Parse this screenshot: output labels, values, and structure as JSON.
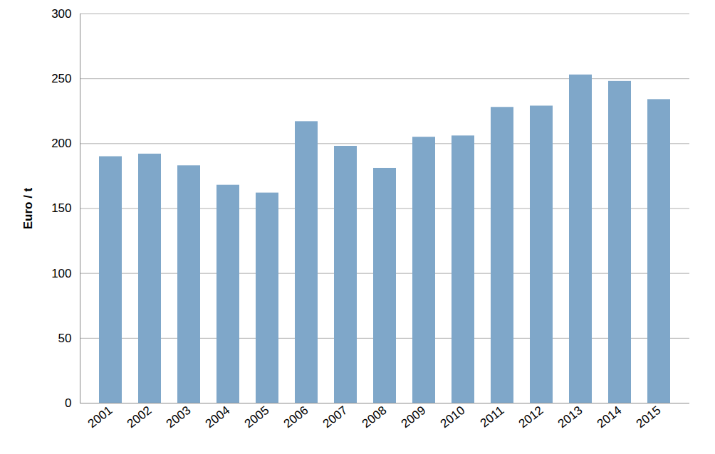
{
  "chart_data": {
    "type": "bar",
    "y_label": "Euro / t",
    "categories": [
      "2001",
      "2002",
      "2003",
      "2004",
      "2005",
      "2006",
      "2007",
      "2008",
      "2009",
      "2010",
      "2011",
      "2012",
      "2013",
      "2014",
      "2015"
    ],
    "values": [
      190,
      192,
      183,
      168,
      162,
      217,
      198,
      181,
      205,
      206,
      228,
      229,
      253,
      248,
      234
    ],
    "color": "#7fa7c9",
    "ylim": [
      0,
      300
    ],
    "yticks": [
      0,
      50,
      100,
      150,
      200,
      250,
      300
    ],
    "grid": true
  }
}
